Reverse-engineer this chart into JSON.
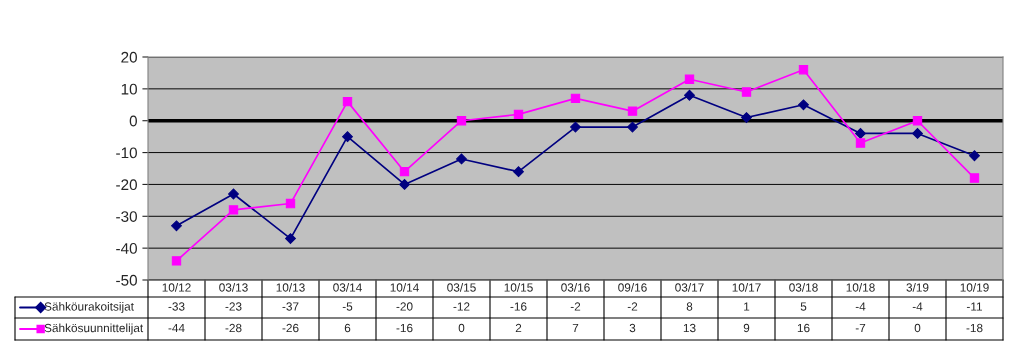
{
  "chart_data": {
    "type": "line",
    "categories": [
      "10/12",
      "03/13",
      "10/13",
      "03/14",
      "10/14",
      "03/15",
      "10/15",
      "03/16",
      "09/16",
      "03/17",
      "10/17",
      "03/18",
      "10/18",
      "3/19",
      "10/19"
    ],
    "series": [
      {
        "name": "Sähköurakoitsijat",
        "color": "#000080",
        "marker": "diamond",
        "values": [
          -33,
          -23,
          -37,
          -5,
          -20,
          -12,
          -16,
          -2,
          -2,
          8,
          1,
          5,
          -4,
          -4,
          -11
        ]
      },
      {
        "name": "Sähkösuunnittelijat",
        "color": "#ff00ff",
        "marker": "square",
        "values": [
          -44,
          -28,
          -26,
          6,
          -16,
          0,
          2,
          7,
          3,
          13,
          9,
          16,
          -7,
          0,
          -18
        ]
      }
    ],
    "ylim": [
      -50,
      20
    ],
    "yticks": [
      -50,
      -40,
      -30,
      -20,
      -10,
      0,
      10,
      20
    ],
    "grid": "y",
    "legend": "bottom",
    "data_labels": true,
    "line_style": "solid",
    "ref_lines": [
      {
        "axis": "y",
        "value": 0,
        "color": "#000000"
      }
    ]
  }
}
